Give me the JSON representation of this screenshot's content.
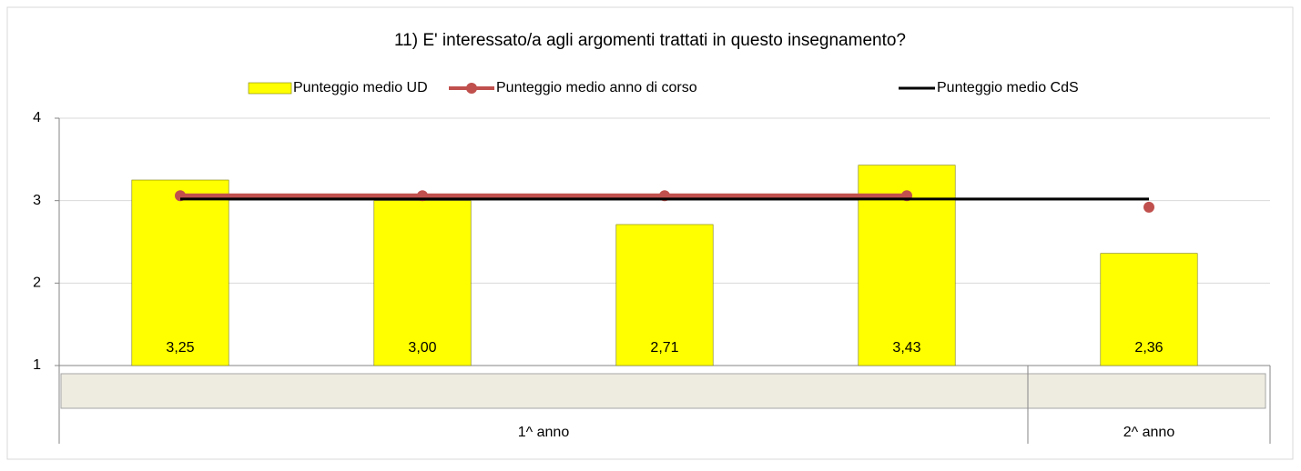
{
  "chart_data": {
    "type": "bar",
    "title": "11) E' interessato/a agli argomenti trattati in questo insegnamento?",
    "categories": [
      null,
      null,
      null,
      null,
      null
    ],
    "groups": [
      {
        "label": "1^ anno",
        "span": 4
      },
      {
        "label": "2^ anno",
        "span": 1
      }
    ],
    "series": [
      {
        "name": "Punteggio medio UD",
        "type": "bar",
        "color": "#ffff00",
        "values": [
          3.25,
          3.0,
          2.71,
          3.43,
          2.36
        ],
        "value_labels": [
          "3,25",
          "3,00",
          "2,71",
          "3,43",
          "2,36"
        ]
      },
      {
        "name": "Punteggio medio anno di corso",
        "type": "line",
        "color": "#c0504d",
        "markers": true,
        "connect_groups": false,
        "values": [
          3.06,
          3.06,
          3.06,
          3.06,
          2.92
        ]
      },
      {
        "name": "Punteggio medio CdS",
        "type": "line",
        "color": "#000000",
        "markers": false,
        "connect_groups": true,
        "values": [
          3.02,
          3.02,
          3.02,
          3.02,
          3.02
        ]
      }
    ],
    "ylim": [
      1,
      4
    ],
    "yticks": [
      1,
      2,
      3,
      4
    ],
    "grid": true,
    "legend": "top"
  }
}
